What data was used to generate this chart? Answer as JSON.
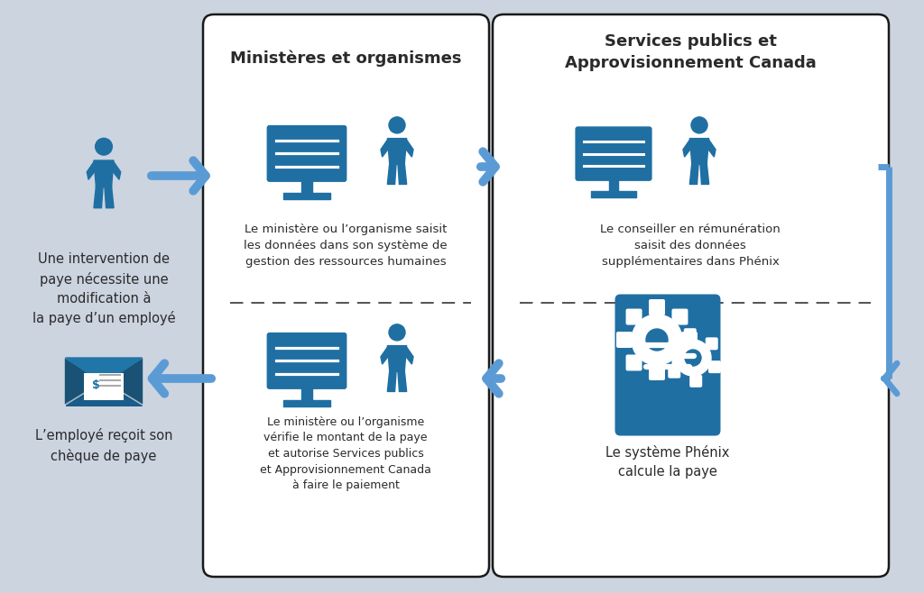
{
  "background_color": "#ccd4e0",
  "box_border_color": "#222222",
  "icon_color": "#1f6fa3",
  "icon_dark_color": "#1a5c8a",
  "arrow_color": "#5b9bd5",
  "text_color": "#2a2a2a",
  "title1": "Ministères et organismes",
  "title2": "Services publics et\nApprovisionnement Canada",
  "left_top_text": "Une intervention de\npaye nécessite une\nmodification à\nla paye d’un employé",
  "left_bottom_text": "L’employé reçoit son\nchèque de paye",
  "box1_top_text": "Le ministère ou l’organisme saisit\nles données dans son système de\ngestion des ressources humaines",
  "box1_bottom_text": "Le ministère ou l’organisme\nvérifie le montant de la paye\net autorise Services publics\net Approvisionnement Canada\nà faire le paiement",
  "box2_top_text": "Le conseiller en rémunération\nsaisit des données\nsupplémentaires dans Phénix",
  "box2_bottom_text": "Le système Phénix\ncalcule la paye",
  "figsize": [
    10.24,
    6.58
  ],
  "dpi": 100
}
